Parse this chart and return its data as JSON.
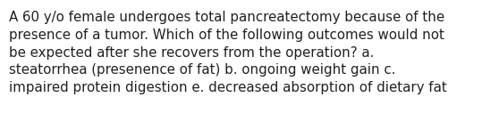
{
  "text": "A 60 y/o female undergoes total pancreatectomy because of the\npresence of a tumor. Which of the following outcomes would not\nbe expected after she recovers from the operation? a.\nsteatorrhea (presenence of fat) b. ongoing weight gain c.\nimpaired protein digestion e. decreased absorption of dietary fat",
  "background_color": "#ffffff",
  "text_color": "#231f20",
  "font_size": 10.8,
  "font_family": "DejaVu Sans",
  "fig_width": 5.58,
  "fig_height": 1.46,
  "dpi": 100
}
